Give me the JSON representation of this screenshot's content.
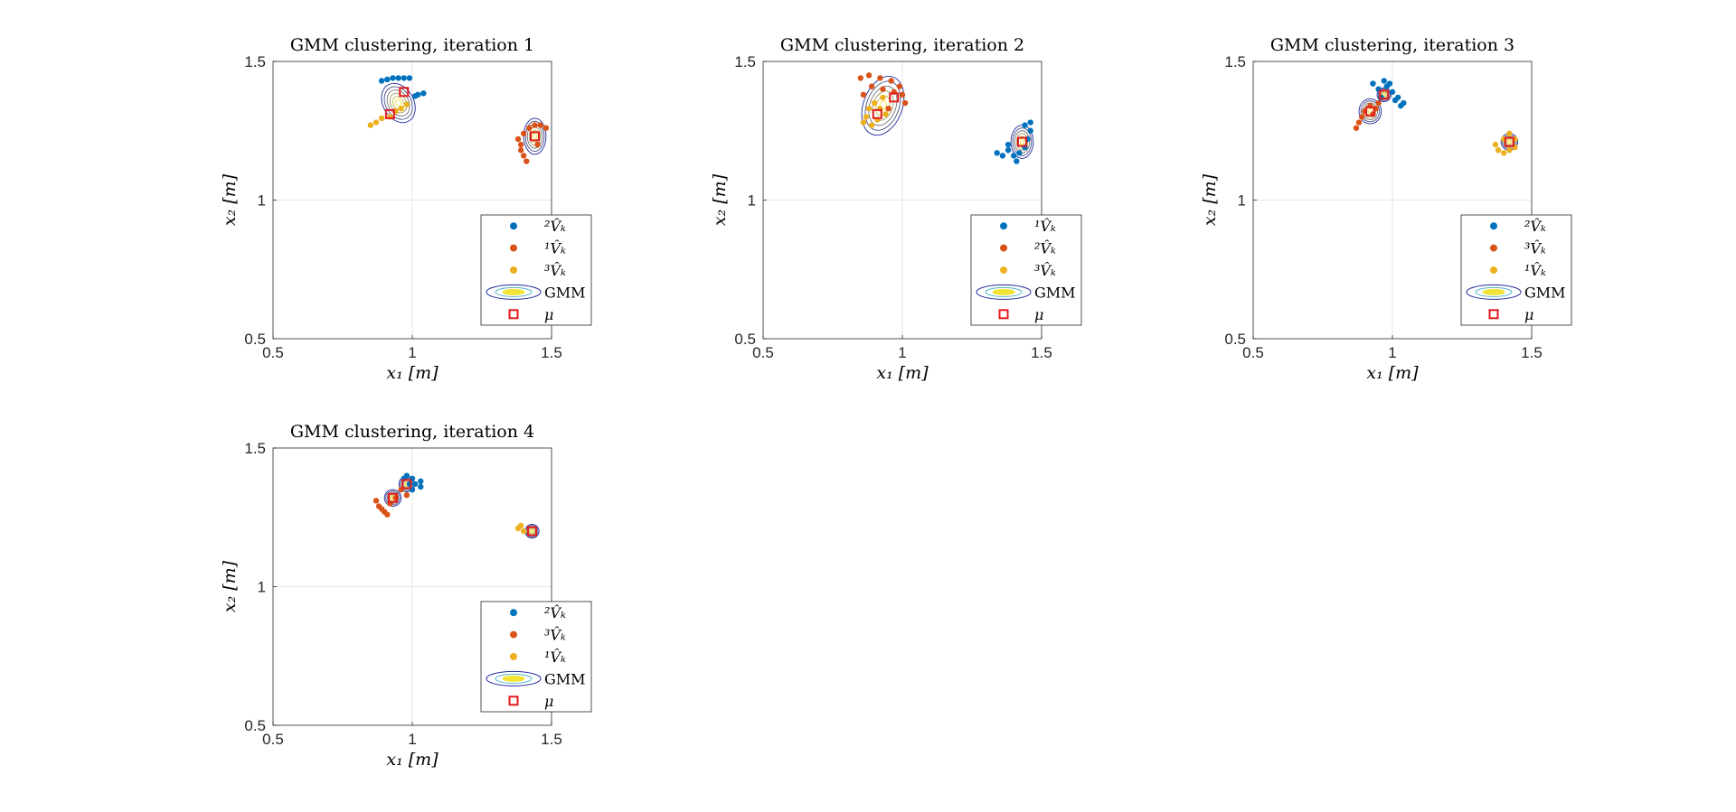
{
  "figure": {
    "background": "#ffffff",
    "colors": {
      "blue": "#0072BD",
      "orange": "#D95319",
      "yellow": "#EDB120",
      "mean_marker": "#E41A1C",
      "contour_outer": "#1f2a9a",
      "contour_inner": "#f2e436",
      "grid": "#e6e6e6"
    }
  },
  "chart_data": [
    {
      "type": "scatter",
      "title": "GMM clustering, iteration 1",
      "xlabel": "x₁ [m]",
      "ylabel": "x₂ [m]",
      "xlim": [
        0.5,
        1.5
      ],
      "ylim": [
        0.5,
        1.5
      ],
      "xticks": [
        "0.5",
        "1",
        "1.5"
      ],
      "yticks": [
        "0.5",
        "1",
        "1.5"
      ],
      "grid": true,
      "legend_position": "bottom-right",
      "legend": [
        "²V̂ₖ",
        "¹V̂ₖ",
        "³V̂ₖ",
        "GMM",
        "μ"
      ],
      "series": [
        {
          "color": "blue",
          "points": [
            [
              0.89,
              1.43
            ],
            [
              0.91,
              1.435
            ],
            [
              0.93,
              1.44
            ],
            [
              0.95,
              1.44
            ],
            [
              0.97,
              1.44
            ],
            [
              0.99,
              1.44
            ],
            [
              1.01,
              1.375
            ],
            [
              1.02,
              1.38
            ],
            [
              1.04,
              1.385
            ]
          ]
        },
        {
          "color": "orange",
          "points": [
            [
              1.38,
              1.22
            ],
            [
              1.39,
              1.2
            ],
            [
              1.39,
              1.18
            ],
            [
              1.4,
              1.16
            ],
            [
              1.4,
              1.24
            ],
            [
              1.42,
              1.26
            ],
            [
              1.44,
              1.27
            ],
            [
              1.46,
              1.27
            ],
            [
              1.48,
              1.26
            ],
            [
              1.41,
              1.14
            ],
            [
              1.45,
              1.2
            ]
          ]
        },
        {
          "color": "yellow",
          "points": [
            [
              0.85,
              1.27
            ],
            [
              0.87,
              1.28
            ],
            [
              0.89,
              1.295
            ],
            [
              0.92,
              1.3
            ],
            [
              0.94,
              1.32
            ],
            [
              0.96,
              1.33
            ],
            [
              0.98,
              1.345
            ]
          ]
        }
      ],
      "means": [
        [
          0.92,
          1.31
        ],
        [
          0.97,
          1.39
        ],
        [
          1.44,
          1.23
        ]
      ],
      "components": [
        {
          "mean": [
            0.95,
            1.35
          ],
          "rx": 0.055,
          "ry": 0.075,
          "angle": -30
        },
        {
          "mean": [
            1.44,
            1.23
          ],
          "rx": 0.04,
          "ry": 0.065,
          "angle": 0
        }
      ]
    },
    {
      "type": "scatter",
      "title": "GMM clustering, iteration 2",
      "xlabel": "x₁ [m]",
      "ylabel": "x₂ [m]",
      "xlim": [
        0.5,
        1.5
      ],
      "ylim": [
        0.5,
        1.5
      ],
      "xticks": [
        "0.5",
        "1",
        "1.5"
      ],
      "yticks": [
        "0.5",
        "1",
        "1.5"
      ],
      "grid": true,
      "legend_position": "bottom-right",
      "legend": [
        "¹V̂ₖ",
        "²V̂ₖ",
        "³V̂ₖ",
        "GMM",
        "μ"
      ],
      "series": [
        {
          "color": "blue",
          "points": [
            [
              1.34,
              1.17
            ],
            [
              1.36,
              1.16
            ],
            [
              1.38,
              1.18
            ],
            [
              1.4,
              1.16
            ],
            [
              1.42,
              1.17
            ],
            [
              1.44,
              1.19
            ],
            [
              1.45,
              1.22
            ],
            [
              1.46,
              1.25
            ],
            [
              1.44,
              1.27
            ],
            [
              1.46,
              1.28
            ],
            [
              1.41,
              1.14
            ],
            [
              1.38,
              1.2
            ]
          ]
        },
        {
          "color": "orange",
          "points": [
            [
              0.85,
              1.44
            ],
            [
              0.88,
              1.45
            ],
            [
              0.92,
              1.44
            ],
            [
              0.96,
              1.43
            ],
            [
              0.99,
              1.41
            ],
            [
              1.0,
              1.38
            ],
            [
              1.01,
              1.35
            ],
            [
              0.97,
              1.39
            ],
            [
              0.93,
              1.4
            ],
            [
              0.89,
              1.41
            ],
            [
              0.86,
              1.38
            ],
            [
              0.95,
              1.33
            ]
          ]
        },
        {
          "color": "yellow",
          "points": [
            [
              0.86,
              1.28
            ],
            [
              0.87,
              1.3
            ],
            [
              0.88,
              1.33
            ],
            [
              0.9,
              1.35
            ],
            [
              0.92,
              1.33
            ],
            [
              0.94,
              1.31
            ],
            [
              0.91,
              1.29
            ],
            [
              0.89,
              1.27
            ],
            [
              0.93,
              1.37
            ]
          ]
        }
      ],
      "means": [
        [
          0.91,
          1.31
        ],
        [
          0.97,
          1.37
        ],
        [
          1.43,
          1.21
        ]
      ],
      "components": [
        {
          "mean": [
            0.93,
            1.34
          ],
          "rx": 0.07,
          "ry": 0.11,
          "angle": 20
        },
        {
          "mean": [
            1.43,
            1.21
          ],
          "rx": 0.04,
          "ry": 0.06,
          "angle": 0
        }
      ]
    },
    {
      "type": "scatter",
      "title": "GMM clustering, iteration 3",
      "xlabel": "x₁ [m]",
      "ylabel": "x₂ [m]",
      "xlim": [
        0.5,
        1.5
      ],
      "ylim": [
        0.5,
        1.5
      ],
      "xticks": [
        "0.5",
        "1",
        "1.5"
      ],
      "yticks": [
        "0.5",
        "1",
        "1.5"
      ],
      "grid": true,
      "legend_position": "bottom-right",
      "legend": [
        "²V̂ₖ",
        "³V̂ₖ",
        "¹V̂ₖ",
        "GMM",
        "μ"
      ],
      "series": [
        {
          "color": "blue",
          "points": [
            [
              0.93,
              1.42
            ],
            [
              0.95,
              1.4
            ],
            [
              0.97,
              1.43
            ],
            [
              0.99,
              1.42
            ],
            [
              1.0,
              1.39
            ],
            [
              1.02,
              1.37
            ],
            [
              1.03,
              1.34
            ],
            [
              1.01,
              1.36
            ],
            [
              0.96,
              1.37
            ],
            [
              1.04,
              1.35
            ],
            [
              0.98,
              1.41
            ]
          ]
        },
        {
          "color": "orange",
          "points": [
            [
              0.87,
              1.26
            ],
            [
              0.88,
              1.28
            ],
            [
              0.89,
              1.3
            ],
            [
              0.9,
              1.32
            ],
            [
              0.92,
              1.34
            ],
            [
              0.94,
              1.33
            ],
            [
              0.93,
              1.31
            ],
            [
              0.95,
              1.35
            ]
          ]
        },
        {
          "color": "yellow",
          "points": [
            [
              1.38,
              1.18
            ],
            [
              1.4,
              1.17
            ],
            [
              1.42,
              1.18
            ],
            [
              1.44,
              1.19
            ],
            [
              1.44,
              1.22
            ],
            [
              1.42,
              1.24
            ],
            [
              1.4,
              1.22
            ],
            [
              1.37,
              1.2
            ]
          ]
        }
      ],
      "means": [
        [
          0.92,
          1.32
        ],
        [
          0.97,
          1.38
        ],
        [
          1.42,
          1.21
        ]
      ],
      "components": [
        {
          "mean": [
            0.92,
            1.32
          ],
          "rx": 0.04,
          "ry": 0.045,
          "angle": 0
        },
        {
          "mean": [
            0.97,
            1.38
          ],
          "rx": 0.025,
          "ry": 0.025,
          "angle": 0
        },
        {
          "mean": [
            1.42,
            1.21
          ],
          "rx": 0.03,
          "ry": 0.03,
          "angle": 0
        }
      ]
    },
    {
      "type": "scatter",
      "title": "GMM clustering, iteration 4",
      "xlabel": "x₁ [m]",
      "ylabel": "x₂ [m]",
      "xlim": [
        0.5,
        1.5
      ],
      "ylim": [
        0.5,
        1.5
      ],
      "xticks": [
        "0.5",
        "1",
        "1.5"
      ],
      "yticks": [
        "0.5",
        "1",
        "1.5"
      ],
      "grid": true,
      "legend_position": "bottom-right",
      "legend": [
        "²V̂ₖ",
        "³V̂ₖ",
        "¹V̂ₖ",
        "GMM",
        "μ"
      ],
      "series": [
        {
          "color": "blue",
          "points": [
            [
              0.97,
              1.39
            ],
            [
              0.98,
              1.4
            ],
            [
              1.0,
              1.39
            ],
            [
              1.01,
              1.37
            ],
            [
              1.03,
              1.38
            ],
            [
              1.03,
              1.36
            ],
            [
              0.99,
              1.37
            ],
            [
              1.0,
              1.35
            ]
          ]
        },
        {
          "color": "orange",
          "points": [
            [
              0.87,
              1.31
            ],
            [
              0.88,
              1.29
            ],
            [
              0.89,
              1.28
            ],
            [
              0.9,
              1.27
            ],
            [
              0.91,
              1.26
            ],
            [
              0.92,
              1.3
            ],
            [
              0.94,
              1.32
            ],
            [
              0.96,
              1.35
            ],
            [
              0.98,
              1.33
            ]
          ]
        },
        {
          "color": "yellow",
          "points": [
            [
              1.38,
              1.21
            ],
            [
              1.39,
              1.22
            ],
            [
              1.4,
              1.2
            ]
          ]
        }
      ],
      "means": [
        [
          0.93,
          1.32
        ],
        [
          0.98,
          1.37
        ],
        [
          1.43,
          1.2
        ]
      ],
      "components": [
        {
          "mean": [
            0.93,
            1.32
          ],
          "rx": 0.03,
          "ry": 0.03,
          "angle": 0
        },
        {
          "mean": [
            0.98,
            1.37
          ],
          "rx": 0.028,
          "ry": 0.028,
          "angle": 0
        },
        {
          "mean": [
            1.43,
            1.2
          ],
          "rx": 0.025,
          "ry": 0.025,
          "angle": 0
        }
      ]
    }
  ]
}
